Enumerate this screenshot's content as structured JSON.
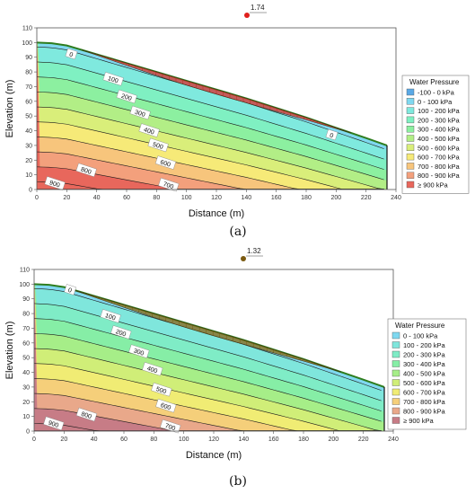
{
  "chart_data": [
    {
      "type": "heatmap",
      "panel_label": "(a)",
      "factor_of_safety": "1.74",
      "xlabel": "Distance (m)",
      "ylabel": "Elevation (m)",
      "xlim": [
        0,
        240
      ],
      "ylim": [
        0,
        110
      ],
      "x_ticks": [
        "0",
        "20",
        "40",
        "60",
        "80",
        "100",
        "120",
        "140",
        "160",
        "180",
        "200",
        "220",
        "240"
      ],
      "y_ticks": [
        "0",
        "10",
        "20",
        "30",
        "40",
        "50",
        "60",
        "70",
        "80",
        "90",
        "100",
        "110"
      ],
      "slope_profile": [
        [
          0,
          100
        ],
        [
          10,
          99.5
        ],
        [
          20,
          98
        ],
        [
          40,
          92
        ],
        [
          60,
          86
        ],
        [
          80,
          80
        ],
        [
          100,
          74
        ],
        [
          140,
          62
        ],
        [
          180,
          49
        ],
        [
          200,
          42
        ],
        [
          220,
          35
        ],
        [
          234,
          30
        ]
      ],
      "slip_surface_entry_exit": [
        [
          30,
          97
        ],
        [
          210,
          38
        ]
      ],
      "contour_labels": [
        {
          "text": "0",
          "x": 23,
          "y": 92
        },
        {
          "text": "100",
          "x": 51,
          "y": 75
        },
        {
          "text": "200",
          "x": 60,
          "y": 63
        },
        {
          "text": "300",
          "x": 69,
          "y": 52
        },
        {
          "text": "400",
          "x": 75,
          "y": 40
        },
        {
          "text": "500",
          "x": 81,
          "y": 30
        },
        {
          "text": "600",
          "x": 86,
          "y": 18
        },
        {
          "text": "700",
          "x": 88,
          "y": 3
        },
        {
          "text": "800",
          "x": 33,
          "y": 13
        },
        {
          "text": "900",
          "x": 12,
          "y": 4
        },
        {
          "text": "0",
          "x": 197,
          "y": 37
        }
      ],
      "legend": {
        "title": "Water Pressure",
        "position": "right",
        "items": [
          {
            "label": "-100 - 0 kPa",
            "color": "#5aa9e6"
          },
          {
            "label": "0 - 100 kPa",
            "color": "#7fd8f0"
          },
          {
            "label": "100 - 200 kPa",
            "color": "#7fe9de"
          },
          {
            "label": "200 - 300 kPa",
            "color": "#7ff0c2"
          },
          {
            "label": "300 - 400 kPa",
            "color": "#8cf0a0"
          },
          {
            "label": "400 - 500 kPa",
            "color": "#b2ee86"
          },
          {
            "label": "500 - 600 kPa",
            "color": "#d9ee7a"
          },
          {
            "label": "600 - 700 kPa",
            "color": "#f6ea78"
          },
          {
            "label": "700 - 800 kPa",
            "color": "#f7c57c"
          },
          {
            "label": "800 - 900 kPa",
            "color": "#f3a07c"
          },
          {
            "label": "≥ 900 kPa",
            "color": "#e8675c"
          }
        ]
      },
      "fs_marker_color": "#e0201c",
      "slices_color": "#d9332a"
    },
    {
      "type": "heatmap",
      "panel_label": "(b)",
      "factor_of_safety": "1.32",
      "xlabel": "Distance (m)",
      "ylabel": "Elevation (m)",
      "xlim": [
        0,
        240
      ],
      "ylim": [
        0,
        110
      ],
      "x_ticks": [
        "0",
        "20",
        "40",
        "60",
        "80",
        "100",
        "120",
        "140",
        "160",
        "180",
        "200",
        "220",
        "240"
      ],
      "y_ticks": [
        "0",
        "10",
        "20",
        "30",
        "40",
        "50",
        "60",
        "70",
        "80",
        "90",
        "100",
        "110"
      ],
      "slope_profile": [
        [
          0,
          100
        ],
        [
          10,
          99.5
        ],
        [
          20,
          98
        ],
        [
          40,
          92
        ],
        [
          60,
          86
        ],
        [
          80,
          80
        ],
        [
          100,
          74
        ],
        [
          140,
          62
        ],
        [
          180,
          49
        ],
        [
          200,
          42
        ],
        [
          220,
          35
        ],
        [
          234,
          30
        ]
      ],
      "slip_surface_entry_exit": [
        [
          25,
          98
        ],
        [
          205,
          40
        ]
      ],
      "contour_labels": [
        {
          "text": "0",
          "x": 24,
          "y": 96
        },
        {
          "text": "100",
          "x": 51,
          "y": 78
        },
        {
          "text": "200",
          "x": 58,
          "y": 67
        },
        {
          "text": "300",
          "x": 70,
          "y": 54
        },
        {
          "text": "400",
          "x": 79,
          "y": 42
        },
        {
          "text": "500",
          "x": 85,
          "y": 28
        },
        {
          "text": "600",
          "x": 88,
          "y": 17
        },
        {
          "text": "700",
          "x": 91,
          "y": 3
        },
        {
          "text": "800",
          "x": 35,
          "y": 11
        },
        {
          "text": "900",
          "x": 13,
          "y": 5
        }
      ],
      "legend": {
        "title": "Water Pressure",
        "position": "right",
        "items": [
          {
            "label": "0 - 100 kPa",
            "color": "#7fd8f0"
          },
          {
            "label": "100 - 200 kPa",
            "color": "#7fe6dc"
          },
          {
            "label": "200 - 300 kPa",
            "color": "#7fecc6"
          },
          {
            "label": "300 - 400 kPa",
            "color": "#86eea6"
          },
          {
            "label": "400 - 500 kPa",
            "color": "#a6ee88"
          },
          {
            "label": "500 - 600 kPa",
            "color": "#d0ee78"
          },
          {
            "label": "600 - 700 kPa",
            "color": "#f0ec74"
          },
          {
            "label": "700 - 800 kPa",
            "color": "#f5cf7a"
          },
          {
            "label": "800 - 900 kPa",
            "color": "#e9a88a"
          },
          {
            "label": "≥ 900 kPa",
            "color": "#c77c86"
          }
        ]
      },
      "fs_marker_color": "#7a5a10",
      "slices_color": "#8a6a12"
    }
  ]
}
